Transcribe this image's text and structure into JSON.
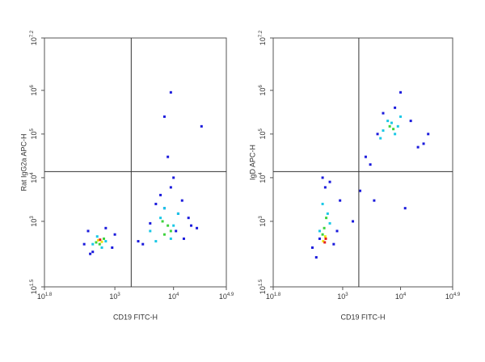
{
  "chart_data": [
    {
      "type": "scatter",
      "xlabel": "CD19 FITC-H",
      "ylabel": "Rat IgG2a APC-H",
      "log_scale": true,
      "xlim": [
        63.1,
        79432.8
      ],
      "ylim": [
        31.6,
        15848932
      ],
      "xticks": [
        {
          "value": 63.1,
          "label": "10",
          "exponent": "1.8"
        },
        {
          "value": 1000,
          "label": "10",
          "exponent": "3"
        },
        {
          "value": 10000,
          "label": "10",
          "exponent": "4"
        },
        {
          "value": 79432.8,
          "label": "10",
          "exponent": "4.9"
        }
      ],
      "yticks": [
        {
          "value": 31.6,
          "label": "10",
          "exponent": "1.5"
        },
        {
          "value": 1000,
          "label": "10",
          "exponent": "3"
        },
        {
          "value": 10000,
          "label": "10",
          "exponent": "4"
        },
        {
          "value": 100000,
          "label": "10",
          "exponent": "5"
        },
        {
          "value": 1000000,
          "label": "10",
          "exponent": "6"
        },
        {
          "value": 15848932,
          "label": "10",
          "exponent": "7.2"
        }
      ],
      "gate_x": 1900,
      "gate_y": 13800,
      "series": [
        {
          "color": "#1a1adc",
          "x": [
            300,
            350,
            420,
            900,
            1000,
            380,
            700,
            3000,
            4000,
            15000,
            20000,
            12000,
            5000,
            6000,
            9000,
            25000,
            10000,
            14000,
            2500,
            18000,
            8000,
            7000,
            11000,
            9000,
            7000,
            30000
          ],
          "y": [
            300,
            600,
            200,
            250,
            500,
            180,
            700,
            300,
            900,
            400,
            800,
            1500,
            2500,
            4000,
            6000,
            700,
            10000,
            3000,
            350,
            1200,
            30000,
            2000,
            600,
            900000,
            250000,
            150000
          ]
        },
        {
          "color": "#19c8e6",
          "x": [
            420,
            700,
            500,
            600,
            4000,
            6000,
            10000,
            12000,
            7000,
            9000,
            5000
          ],
          "y": [
            300,
            350,
            450,
            250,
            600,
            1200,
            800,
            1500,
            2000,
            400,
            350
          ]
        },
        {
          "color": "#3cd23c",
          "x": [
            480,
            650,
            550,
            7000,
            8000,
            9000,
            6500
          ],
          "y": [
            330,
            400,
            300,
            500,
            800,
            600,
            1000
          ]
        },
        {
          "color": "#f0e614",
          "x": [
            520,
            600
          ],
          "y": [
            370,
            340
          ]
        },
        {
          "color": "#e61e1e",
          "x": [
            560
          ],
          "y": [
            380
          ]
        }
      ]
    },
    {
      "type": "scatter",
      "xlabel": "CD19 FITC-H",
      "ylabel": "IgD APC-H",
      "log_scale": true,
      "xlim": [
        63.1,
        79432.8
      ],
      "ylim": [
        31.6,
        15848932
      ],
      "xticks": [
        {
          "value": 63.1,
          "label": "10",
          "exponent": "1.8"
        },
        {
          "value": 1000,
          "label": "10",
          "exponent": "3"
        },
        {
          "value": 10000,
          "label": "10",
          "exponent": "4"
        },
        {
          "value": 79432.8,
          "label": "10",
          "exponent": "4.9"
        }
      ],
      "yticks": [
        {
          "value": 31.6,
          "label": "10",
          "exponent": "1.5"
        },
        {
          "value": 1000,
          "label": "10",
          "exponent": "3"
        },
        {
          "value": 10000,
          "label": "10",
          "exponent": "4"
        },
        {
          "value": 100000,
          "label": "10",
          "exponent": "5"
        },
        {
          "value": 1000000,
          "label": "10",
          "exponent": "6"
        },
        {
          "value": 15848932,
          "label": "10",
          "exponent": "7.2"
        }
      ],
      "gate_x": 1900,
      "gate_y": 13800,
      "series": [
        {
          "color": "#1a1adc",
          "x": [
            300,
            350,
            400,
            700,
            800,
            900,
            600,
            2000,
            3000,
            4000,
            15000,
            20000,
            5000,
            8000,
            25000,
            12000,
            1500,
            2500,
            3500,
            10000,
            30000,
            500,
            450
          ],
          "y": [
            250,
            150,
            400,
            300,
            600,
            3000,
            8000,
            5000,
            20000,
            100000,
            200000,
            50000,
            300000,
            400000,
            60000,
            2000,
            1000,
            30000,
            3000,
            900000,
            100000,
            6000,
            10000
          ]
        },
        {
          "color": "#19c8e6",
          "x": [
            400,
            550,
            450,
            600,
            5000,
            7000,
            8000,
            6000,
            9000,
            4500,
            10000
          ],
          "y": [
            600,
            1500,
            2500,
            900,
            120000,
            180000,
            100000,
            200000,
            150000,
            80000,
            250000
          ]
        },
        {
          "color": "#3cd23c",
          "x": [
            480,
            520,
            450,
            6500,
            7500
          ],
          "y": [
            700,
            1200,
            500,
            150000,
            130000
          ]
        },
        {
          "color": "#f0e614",
          "x": [
            500,
            460
          ],
          "y": [
            450,
            350
          ]
        },
        {
          "color": "#e61e1e",
          "x": [
            510,
            490
          ],
          "y": [
            400,
            330
          ]
        }
      ]
    }
  ]
}
